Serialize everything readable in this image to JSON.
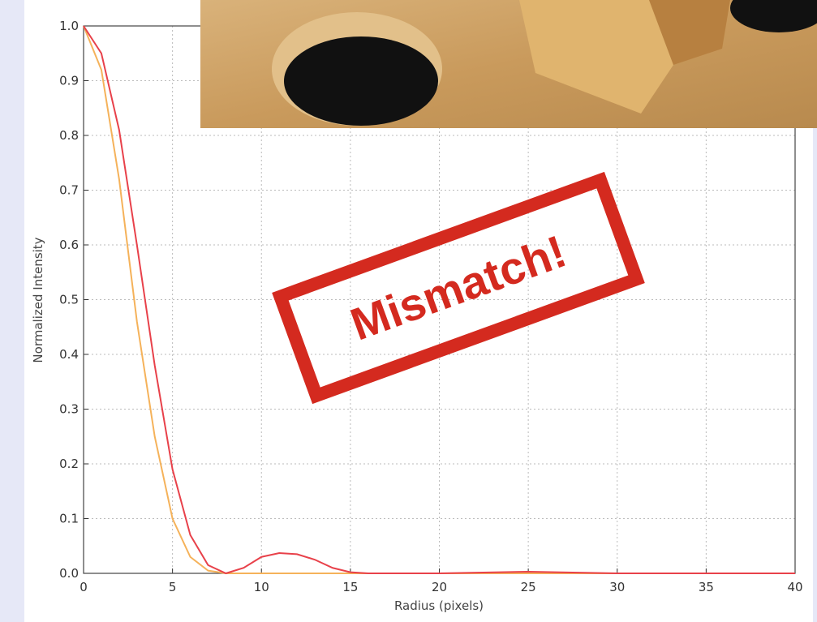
{
  "chart_data": {
    "type": "line",
    "xlabel": "Radius (pixels)",
    "ylabel": "Normalized Intensity",
    "annotation": "Mismatch!",
    "x": [
      0,
      1,
      2,
      3,
      4,
      5,
      6,
      7,
      8,
      9,
      10,
      11,
      12,
      13,
      14,
      15,
      16,
      20,
      25,
      30,
      35,
      40
    ],
    "series": [
      {
        "color": "#e8414a",
        "values": [
          1.0,
          0.95,
          0.81,
          0.6,
          0.38,
          0.19,
          0.07,
          0.015,
          0.0,
          0.01,
          0.03,
          0.037,
          0.035,
          0.025,
          0.01,
          0.002,
          0.0,
          0.0,
          0.003,
          0.0,
          0.0,
          0.0
        ]
      },
      {
        "color": "#f5b25a",
        "values": [
          1.0,
          0.92,
          0.72,
          0.46,
          0.25,
          0.1,
          0.03,
          0.005,
          0.0,
          0.0,
          0.0,
          0.0,
          0.0,
          0.0,
          0.0,
          0.0,
          0.0,
          0.0,
          0.0,
          0.0,
          0.0,
          0.0
        ]
      }
    ],
    "xlim": [
      0,
      40
    ],
    "ylim": [
      0,
      1
    ],
    "xticks": [
      0,
      5,
      10,
      15,
      20,
      25,
      30,
      35,
      40
    ],
    "yticks": [
      {
        "value": 0,
        "label": "0.0"
      },
      0.1,
      0.2,
      0.3,
      0.4,
      0.5,
      0.6,
      0.7,
      0.8,
      0.9,
      {
        "value": 1,
        "label": "1.0"
      }
    ],
    "grid": true
  }
}
